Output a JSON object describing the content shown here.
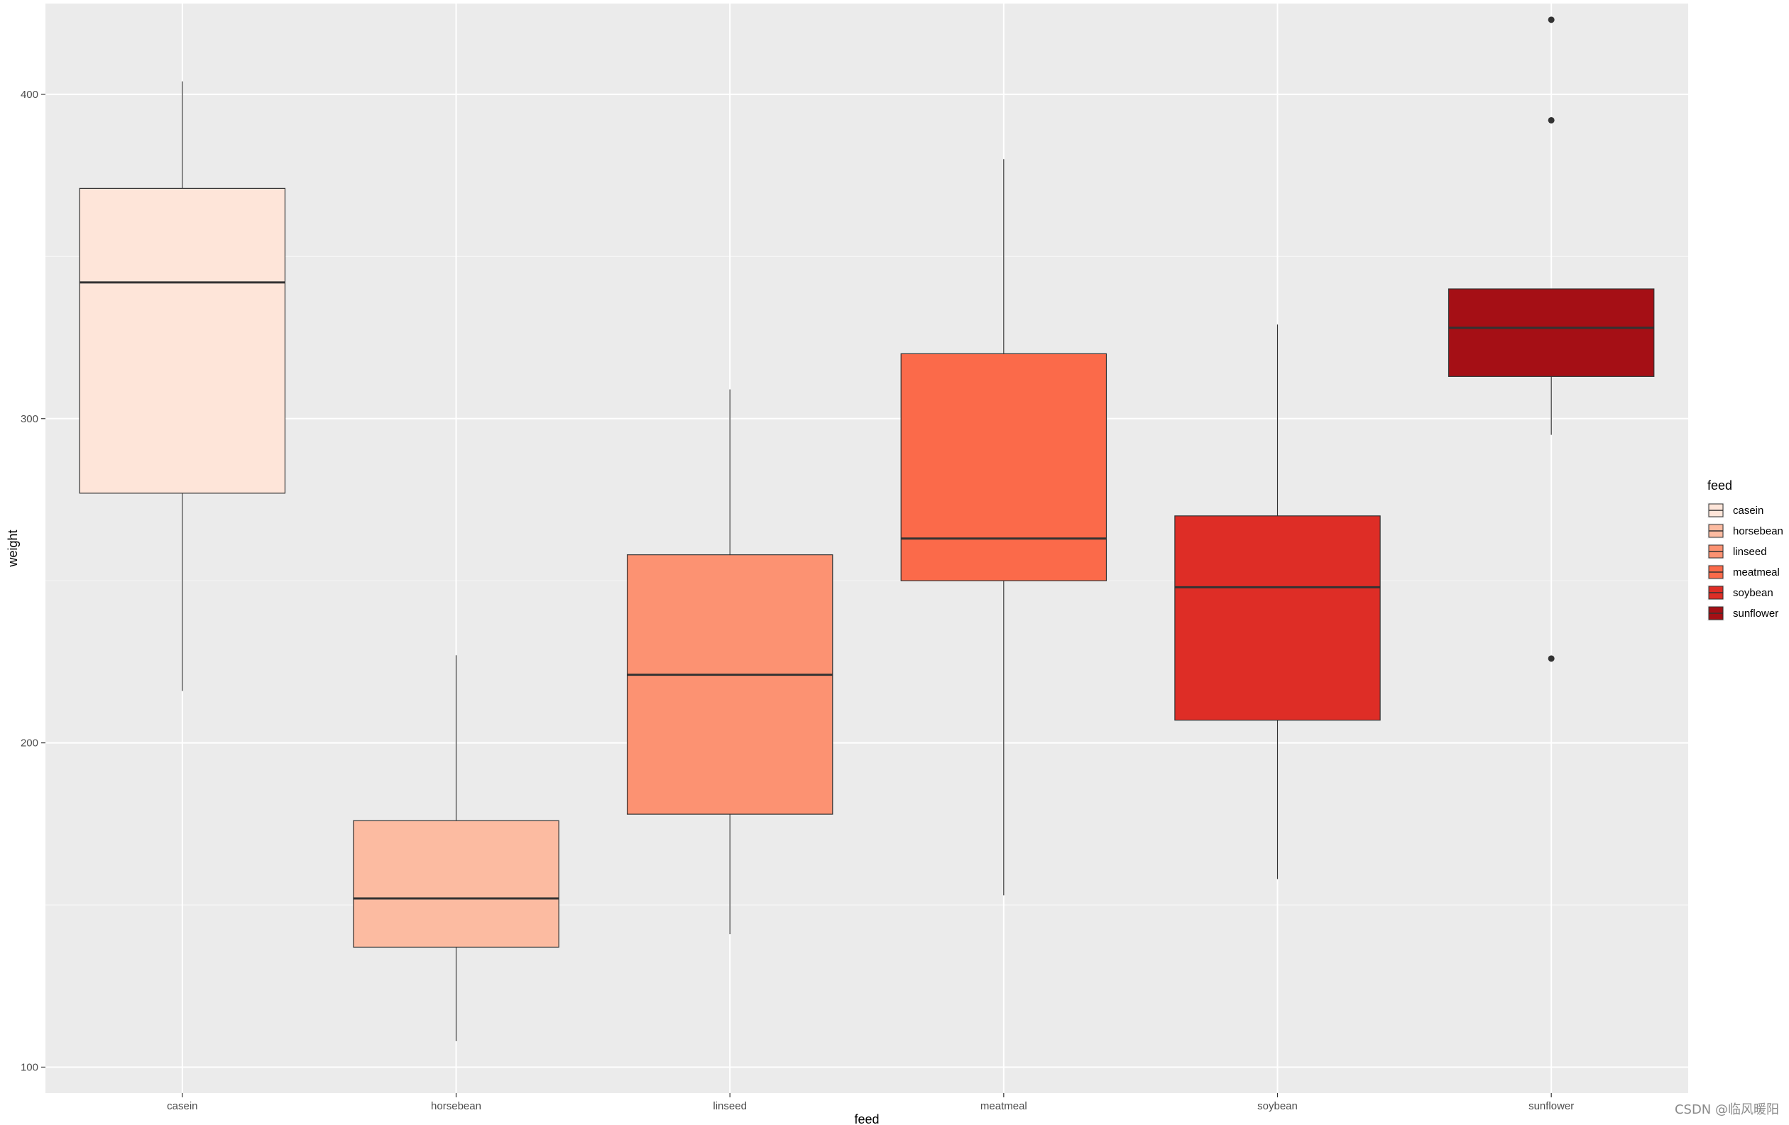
{
  "chart_data": {
    "type": "boxplot",
    "title": "",
    "xlabel": "feed",
    "ylabel": "weight",
    "ylim": [
      92,
      428
    ],
    "yticks": [
      100,
      200,
      300,
      400
    ],
    "grid": true,
    "legend": {
      "title": "feed",
      "position": "right"
    },
    "categories": [
      "casein",
      "horsebean",
      "linseed",
      "meatmeal",
      "soybean",
      "sunflower"
    ],
    "boxes": [
      {
        "name": "casein",
        "min": 216,
        "q1": 277,
        "median": 342,
        "q3": 371,
        "max": 404,
        "outliers": [],
        "color": "#fee5d9"
      },
      {
        "name": "horsebean",
        "min": 108,
        "q1": 137,
        "median": 152,
        "q3": 176,
        "max": 227,
        "outliers": [],
        "color": "#fcbba1"
      },
      {
        "name": "linseed",
        "min": 141,
        "q1": 178,
        "median": 221,
        "q3": 258,
        "max": 309,
        "outliers": [],
        "color": "#fc9272"
      },
      {
        "name": "meatmeal",
        "min": 153,
        "q1": 250,
        "median": 263,
        "q3": 320,
        "max": 380,
        "outliers": [],
        "color": "#fb6a4a"
      },
      {
        "name": "soybean",
        "min": 158,
        "q1": 207,
        "median": 248,
        "q3": 270,
        "max": 329,
        "outliers": [],
        "color": "#de2d26"
      },
      {
        "name": "sunflower",
        "min": 295,
        "q1": 313,
        "median": 328,
        "q3": 340,
        "max": 340,
        "outliers": [
          226,
          392,
          423
        ],
        "color": "#a50f15"
      }
    ]
  },
  "watermark": "CSDN @临风暖阳"
}
